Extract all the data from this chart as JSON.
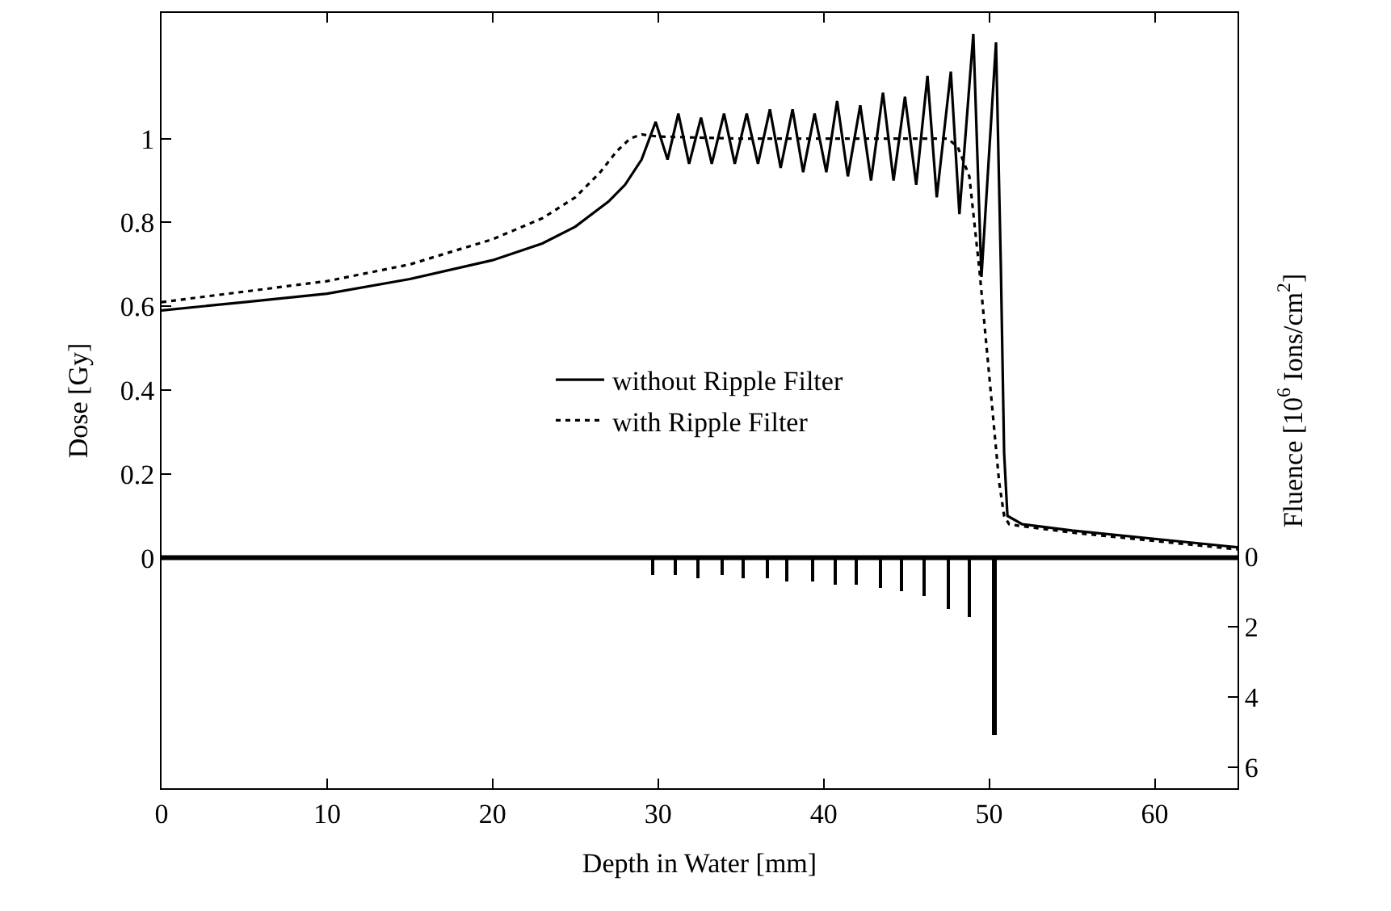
{
  "chart_data": {
    "type": "line",
    "xlabel": "Depth in Water [mm]",
    "ylabel": "Dose [Gy]",
    "y2label": "Fluence [10$^{6}$ Ions/cm$^{2}$]",
    "xlim": [
      0,
      65
    ],
    "xticks": [
      0,
      10,
      20,
      30,
      40,
      50,
      60
    ],
    "ylim": [
      -0.55,
      1.3
    ],
    "yticks": [
      0,
      0.2,
      0.4,
      0.6,
      0.8,
      1
    ],
    "y2lim": [
      6.6,
      -15.5
    ],
    "y2ticks": [
      0,
      2,
      4,
      6
    ],
    "legend": "center",
    "grid": false,
    "ref_lines": [
      {
        "axis": "y",
        "value": 0,
        "color": "#000000",
        "line_style": "solid"
      }
    ],
    "series": [
      {
        "name": "without Ripple Filter",
        "color": "#000000",
        "line_style": "solid",
        "x": [
          0,
          5,
          10,
          15,
          20,
          23,
          25,
          27,
          28,
          29,
          29.85,
          30.57,
          31.22,
          31.87,
          32.59,
          33.24,
          33.98,
          34.63,
          35.35,
          36.03,
          36.75,
          37.4,
          38.12,
          38.76,
          39.45,
          40.16,
          40.81,
          41.46,
          42.21,
          42.86,
          43.58,
          44.22,
          44.91,
          45.59,
          46.27,
          46.83,
          47.68,
          48.2,
          49.04,
          49.53,
          50.41,
          50.7,
          50.9,
          51.1,
          52,
          55,
          60,
          65
        ],
        "values": [
          0.59,
          0.61,
          0.63,
          0.665,
          0.71,
          0.75,
          0.79,
          0.85,
          0.89,
          0.95,
          1.04,
          0.95,
          1.06,
          0.94,
          1.05,
          0.94,
          1.06,
          0.94,
          1.06,
          0.94,
          1.07,
          0.93,
          1.07,
          0.92,
          1.06,
          0.92,
          1.09,
          0.91,
          1.08,
          0.9,
          1.11,
          0.9,
          1.1,
          0.89,
          1.15,
          0.86,
          1.16,
          0.82,
          1.25,
          0.67,
          1.23,
          0.7,
          0.25,
          0.1,
          0.08,
          0.065,
          0.045,
          0.025
        ]
      },
      {
        "name": "with Ripple Filter",
        "color": "#000000",
        "line_style": "dotted",
        "x": [
          0,
          5,
          10,
          15,
          20,
          23,
          25,
          26.5,
          27.5,
          28.3,
          29,
          30,
          35,
          40,
          45,
          47.5,
          48.1,
          48.8,
          49.4,
          49.8,
          50.2,
          50.6,
          50.9,
          51.2,
          52,
          55,
          60,
          65
        ],
        "values": [
          0.61,
          0.635,
          0.66,
          0.7,
          0.76,
          0.81,
          0.86,
          0.92,
          0.97,
          1.0,
          1.01,
          1.005,
          1.0,
          1.0,
          1.0,
          1.0,
          0.98,
          0.91,
          0.69,
          0.52,
          0.35,
          0.18,
          0.1,
          0.08,
          0.075,
          0.06,
          0.04,
          0.02
        ]
      },
      {
        "type": "bar",
        "axis": "y2",
        "color": "#000000",
        "x": [
          29.7,
          31.0,
          32.4,
          33.9,
          35.1,
          36.6,
          37.8,
          39.3,
          40.7,
          42.0,
          43.4,
          44.7,
          46.1,
          47.5,
          48.8,
          50.3
        ],
        "values": [
          0.5,
          0.5,
          0.6,
          0.5,
          0.6,
          0.6,
          0.7,
          0.7,
          0.8,
          0.8,
          0.9,
          1.0,
          1.1,
          1.5,
          1.7,
          5.1
        ]
      }
    ]
  }
}
